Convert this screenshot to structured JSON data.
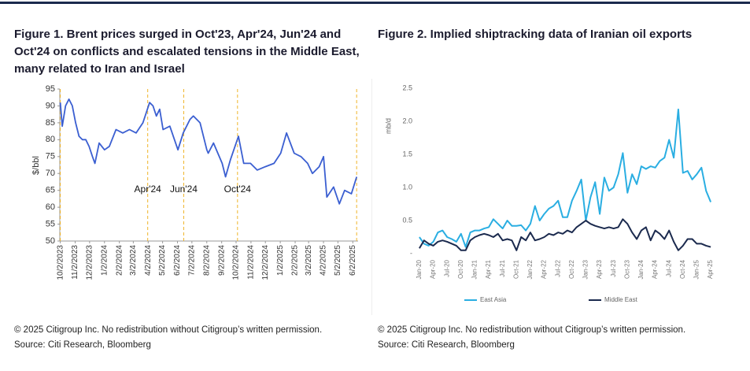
{
  "chart_data": [
    {
      "type": "line",
      "title": "Figure 1. Brent prices surged in Oct'23, Apr'24, Jun'24 and Oct'24 on conflicts and escalated tensions in the Middle East, many related to Iran and Israel",
      "ylabel": "$/bbl",
      "x": [
        "10/2/2023",
        "10/6/2023",
        "10/13/2023",
        "10/20/2023",
        "10/27/2023",
        "11/3/2023",
        "11/10/2023",
        "11/17/2023",
        "11/24/2023",
        "12/1/2023",
        "12/8/2023",
        "12/13/2023",
        "12/22/2023",
        "1/2/2024",
        "1/12/2024",
        "1/26/2024",
        "2/9/2024",
        "2/23/2024",
        "3/8/2024",
        "3/22/2024",
        "4/5/2024",
        "4/12/2024",
        "4/19/2024",
        "4/26/2024",
        "5/3/2024",
        "5/17/2024",
        "6/3/2024",
        "6/14/2024",
        "6/28/2024",
        "7/5/2024",
        "7/19/2024",
        "8/2/2024",
        "8/5/2024",
        "8/16/2024",
        "9/3/2024",
        "9/10/2024",
        "9/20/2024",
        "10/7/2024",
        "10/18/2024",
        "11/1/2024",
        "11/15/2024",
        "12/2/2024",
        "12/20/2024",
        "1/3/2025",
        "1/15/2025",
        "1/31/2025",
        "2/14/2025",
        "2/28/2025",
        "3/10/2025",
        "3/24/2025",
        "4/2/2025",
        "4/9/2025",
        "4/23/2025",
        "5/5/2025",
        "5/16/2025",
        "5/30/2025",
        "6/10/2025"
      ],
      "series": [
        {
          "name": "Brent",
          "color": "#3b5fd1",
          "values": [
            91,
            84,
            90,
            92,
            90,
            85,
            81,
            80,
            80,
            78,
            75,
            73,
            79,
            77,
            78,
            83,
            82,
            83,
            82,
            85,
            91,
            90,
            87,
            89,
            83,
            84,
            77,
            82,
            86,
            87,
            85,
            77,
            76,
            79,
            73,
            69,
            74,
            81,
            73,
            73,
            71,
            72,
            73,
            76,
            82,
            76,
            75,
            73,
            70,
            72,
            75,
            63,
            66,
            61,
            65,
            64,
            69
          ]
        }
      ],
      "xlim": [
        "10/1/2023",
        "6/13/2025"
      ],
      "xticks": [
        "10/2/2023",
        "11/2/2023",
        "12/2/2023",
        "1/2/2024",
        "2/2/2024",
        "3/2/2024",
        "4/2/2024",
        "5/2/2024",
        "6/2/2024",
        "7/2/2024",
        "8/2/2024",
        "9/2/2024",
        "10/2/2024",
        "11/2/2024",
        "12/2/2024",
        "1/2/2025",
        "2/2/2025",
        "3/2/2025",
        "4/2/2025",
        "5/2/2025",
        "6/2/2025"
      ],
      "ylim": [
        50,
        95
      ],
      "yticks": [
        50,
        55,
        60,
        65,
        70,
        75,
        80,
        85,
        90,
        95
      ],
      "event_lines": [
        {
          "x": "10/2/2023"
        },
        {
          "x": "4/1/2024",
          "label": "Apr'24"
        },
        {
          "x": "6/15/2024",
          "label": "Jun'24"
        },
        {
          "x": "10/5/2024",
          "label": "Oct'24"
        },
        {
          "x": "6/10/2025"
        }
      ],
      "event_color": "#f0b429",
      "copyright": "© 2025 Citigroup Inc. No redistribution without Citigroup’s written permission.",
      "source": "Source: Citi Research, Bloomberg"
    },
    {
      "type": "line",
      "title": "Figure 2. Implied shiptracking data of Iranian oil exports",
      "ylabel": "mb/d",
      "categories": [
        "Jan-20",
        null,
        null,
        "Apr-20",
        null,
        null,
        "Jul-20",
        null,
        null,
        "Oct-20",
        null,
        null,
        "Jan-21",
        null,
        null,
        "Apr-21",
        null,
        null,
        "Jul-21",
        null,
        null,
        "Oct-21",
        null,
        null,
        "Jan-22",
        null,
        null,
        "Apr-22",
        null,
        null,
        "Jul-22",
        null,
        null,
        "Oct-22",
        null,
        null,
        "Jan-23",
        null,
        null,
        "Apr-23",
        null,
        null,
        "Jul-23",
        null,
        null,
        "Oct-23",
        null,
        null,
        "Jan-24",
        null,
        null,
        "Apr-24",
        null,
        null,
        "Jul-24",
        null,
        null,
        "Oct-24",
        null,
        null,
        "Jan-25",
        null,
        null,
        "Apr-25"
      ],
      "series": [
        {
          "name": "East Asia",
          "color": "#2aaee2",
          "values": [
            0.25,
            0.15,
            0.12,
            0.18,
            0.32,
            0.35,
            0.25,
            0.22,
            0.18,
            0.3,
            0.1,
            0.32,
            0.35,
            0.35,
            0.38,
            0.4,
            0.52,
            0.45,
            0.38,
            0.5,
            0.42,
            0.42,
            0.43,
            0.35,
            0.45,
            0.72,
            0.5,
            0.6,
            0.68,
            0.72,
            0.8,
            0.55,
            0.55,
            0.8,
            0.95,
            1.12,
            0.5,
            0.85,
            1.08,
            0.6,
            1.15,
            0.95,
            1.0,
            1.2,
            1.52,
            0.92,
            1.2,
            1.05,
            1.32,
            1.28,
            1.32,
            1.3,
            1.4,
            1.45,
            1.72,
            1.45,
            2.18,
            1.22,
            1.25,
            1.12,
            1.2,
            1.3,
            0.95,
            0.78
          ]
        },
        {
          "name": "Middle East",
          "color": "#1b2a4e",
          "values": [
            0.08,
            0.2,
            0.15,
            0.12,
            0.18,
            0.2,
            0.18,
            0.15,
            0.12,
            0.05,
            0.05,
            0.2,
            0.25,
            0.28,
            0.3,
            0.28,
            0.25,
            0.3,
            0.2,
            0.22,
            0.2,
            0.05,
            0.25,
            0.2,
            0.32,
            0.2,
            0.22,
            0.25,
            0.3,
            0.28,
            0.32,
            0.3,
            0.35,
            0.32,
            0.4,
            0.45,
            0.5,
            0.45,
            0.42,
            0.4,
            0.38,
            0.4,
            0.38,
            0.4,
            0.52,
            0.45,
            0.32,
            0.22,
            0.35,
            0.4,
            0.2,
            0.35,
            0.3,
            0.22,
            0.35,
            0.18,
            0.05,
            0.12,
            0.22,
            0.22,
            0.15,
            0.15,
            0.12,
            0.1
          ]
        }
      ],
      "ylim": [
        0,
        2.5
      ],
      "yticks": [
        {
          "value": 0,
          "label": "-"
        },
        0.5,
        {
          "value": 1,
          "label": "1.0"
        },
        1.5,
        {
          "value": 2,
          "label": "2.0"
        },
        2.5
      ],
      "copyright": "© 2025 Citigroup Inc. No redistribution without Citigroup’s written permission.",
      "source": "Source: Citi Research, Bloomberg"
    }
  ]
}
